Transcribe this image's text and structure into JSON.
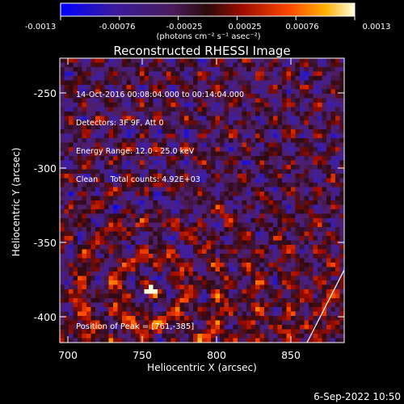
{
  "title": "Reconstructed RHESSI Image",
  "colorbar": {
    "ticks": [
      "-0.0013",
      "-0.00076",
      "-0.00025",
      "0.00025",
      "0.00076",
      "0.0013"
    ],
    "unit": "(photons cm⁻² s⁻¹ asec⁻²)",
    "min": -0.0013,
    "max": 0.0013
  },
  "info_lines": [
    "14-Oct-2016 00:08:04.000 to 00:14:04.000",
    "Detectors: 3F 9F, Att 0",
    "Energy Range: 12.0 - 25.0 keV",
    "Clean     Total counts: 4.92E+03"
  ],
  "peak_label": "Position of Peak = [761,-385]",
  "x_axis": {
    "label": "Heliocentric X (arcsec)",
    "ticks": [
      "700",
      "750",
      "800",
      "850"
    ],
    "range": [
      700,
      890
    ]
  },
  "y_axis": {
    "label": "Heliocentric Y (arcsec)",
    "ticks": [
      "-250",
      "-300",
      "-350",
      "-400"
    ],
    "range": [
      -420,
      -230
    ]
  },
  "peak": {
    "x": 761,
    "y": -385
  },
  "timestamp": "6-Sep-2022 10:50"
}
